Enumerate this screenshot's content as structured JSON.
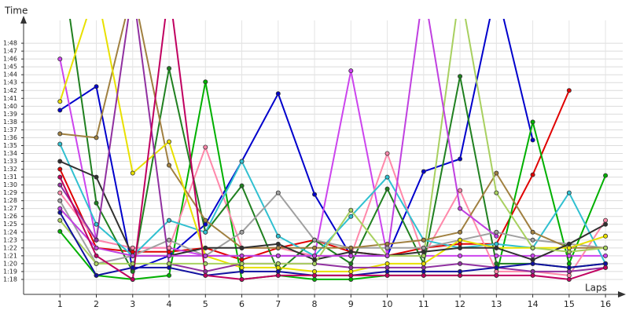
{
  "chart_data": {
    "type": "line",
    "y_label": "Time",
    "x_label": "Laps",
    "x": [
      1,
      2,
      3,
      4,
      5,
      6,
      7,
      8,
      9,
      10,
      11,
      12,
      13,
      14,
      15,
      16
    ],
    "xlim": [
      0,
      16.4
    ],
    "xticks": [
      1,
      2,
      3,
      4,
      5,
      6,
      7,
      8,
      9,
      10,
      11,
      12,
      13,
      14,
      15,
      16
    ],
    "ylim": [
      76.1,
      110.9
    ],
    "yticks": [
      {
        "value": 78,
        "label": "1:18"
      },
      {
        "value": 79,
        "label": "1:19"
      },
      {
        "value": 80,
        "label": "1:20"
      },
      {
        "value": 81,
        "label": "1:21"
      },
      {
        "value": 82,
        "label": "1:22"
      },
      {
        "value": 83,
        "label": "1:23"
      },
      {
        "value": 84,
        "label": "1:24"
      },
      {
        "value": 85,
        "label": "1:25"
      },
      {
        "value": 86,
        "label": "1:26"
      },
      {
        "value": 87,
        "label": "1:27"
      },
      {
        "value": 88,
        "label": "1:28"
      },
      {
        "value": 89,
        "label": "1:29"
      },
      {
        "value": 90,
        "label": "1:30"
      },
      {
        "value": 91,
        "label": "1:31"
      },
      {
        "value": 92,
        "label": "1:32"
      },
      {
        "value": 93,
        "label": "1:33"
      },
      {
        "value": 94,
        "label": "1:34"
      },
      {
        "value": 95,
        "label": "1:35"
      },
      {
        "value": 96,
        "label": "1:36"
      },
      {
        "value": 97,
        "label": "1:37"
      },
      {
        "value": 98,
        "label": "1:38"
      },
      {
        "value": 99,
        "label": "1:39"
      },
      {
        "value": 100,
        "label": "1:40"
      },
      {
        "value": 101,
        "label": "1:41"
      },
      {
        "value": 102,
        "label": "1:42"
      },
      {
        "value": 103,
        "label": "1:43"
      },
      {
        "value": 104,
        "label": "1:44"
      },
      {
        "value": 105,
        "label": "1:45"
      },
      {
        "value": 106,
        "label": "1:46"
      },
      {
        "value": 107,
        "label": "1:47"
      },
      {
        "value": 108,
        "label": "1:48"
      }
    ],
    "grid": true,
    "series": [
      {
        "color": "#0000cc",
        "values": [
          99.5,
          102.5,
          79.2,
          81,
          85,
          93,
          101.6,
          88.8,
          81,
          81,
          91.7,
          93.3,
          115,
          95.7,
          null,
          null
        ]
      },
      {
        "color": "#e00000",
        "values": [
          92,
          82,
          81.5,
          81.5,
          82,
          80.5,
          82,
          83,
          81.5,
          81,
          82,
          82.5,
          82.5,
          91.3,
          102,
          null
        ]
      },
      {
        "color": "#00b000",
        "values": [
          84.1,
          78.5,
          78,
          78.5,
          103.1,
          78,
          78.5,
          78,
          78,
          78.5,
          78.5,
          78.5,
          78.5,
          98,
          80,
          91.2
        ]
      },
      {
        "color": "#cc44ee",
        "values": [
          106,
          83,
          82,
          82,
          81,
          81,
          81,
          81,
          104.5,
          81,
          81,
          81,
          81,
          81,
          81,
          81
        ]
      },
      {
        "color": "#ff88aa",
        "values": [
          89,
          83,
          82,
          82,
          94.8,
          82,
          82,
          81,
          81,
          94,
          81,
          89.3,
          79,
          79,
          78.5,
          85.5
        ]
      },
      {
        "color": "#208020",
        "values": [
          120,
          87.7,
          79,
          104.8,
          84,
          89.9,
          79,
          83,
          80,
          89.5,
          80,
          103.8,
          80,
          80,
          79.5,
          80
        ]
      },
      {
        "color": "#30c0d0",
        "values": [
          95.2,
          85,
          81,
          85.5,
          84,
          93,
          83.5,
          81,
          86,
          91,
          83,
          82,
          82.5,
          82,
          89,
          80
        ]
      },
      {
        "color": "#a0a0a0",
        "values": [
          88,
          80,
          81,
          83,
          81,
          84,
          89,
          83,
          82,
          82,
          82,
          83,
          84,
          83,
          82.5,
          82
        ]
      },
      {
        "color": "#a08040",
        "values": [
          96.5,
          96,
          115,
          92.5,
          85.5,
          82,
          82,
          82,
          82,
          82.5,
          83,
          84,
          91.5,
          84,
          82,
          82
        ]
      },
      {
        "color": "#e8e000",
        "values": [
          100.6,
          115,
          91.5,
          95.5,
          81,
          79.5,
          79.5,
          79,
          79,
          80,
          80,
          83,
          82,
          82,
          82,
          83.5
        ]
      },
      {
        "color": "#303030",
        "values": [
          93,
          91,
          81,
          81,
          82,
          82,
          82.5,
          80.5,
          81.5,
          81,
          81.5,
          82,
          82,
          80.5,
          82.5,
          85
        ]
      },
      {
        "color": "#9030a0",
        "values": [
          90,
          83,
          115,
          80,
          79,
          80,
          80,
          80,
          79.5,
          79.5,
          79.5,
          80,
          79.5,
          79,
          79,
          79.5
        ]
      },
      {
        "color": "#a8d060",
        "values": [
          85.5,
          80,
          80,
          80,
          80,
          80,
          80,
          80,
          86.8,
          81,
          81,
          115,
          89,
          82,
          81.5,
          82
        ]
      },
      {
        "color": "#c040e0",
        "values": [
          87,
          82,
          81,
          81,
          81,
          81,
          81,
          81,
          81,
          81,
          115,
          87,
          83.5,
          null,
          null,
          null
        ]
      },
      {
        "color": "#1010a0",
        "values": [
          86.5,
          78.5,
          79.5,
          79.5,
          78.5,
          79,
          79,
          78.5,
          78.5,
          79,
          79,
          79,
          79.5,
          80,
          79.5,
          80
        ]
      },
      {
        "color": "#c00060",
        "values": [
          91,
          81,
          78,
          115,
          78.5,
          78,
          78.5,
          78.5,
          78.5,
          78.5,
          78.5,
          78.5,
          78.5,
          78.5,
          78,
          79.5
        ]
      }
    ]
  }
}
